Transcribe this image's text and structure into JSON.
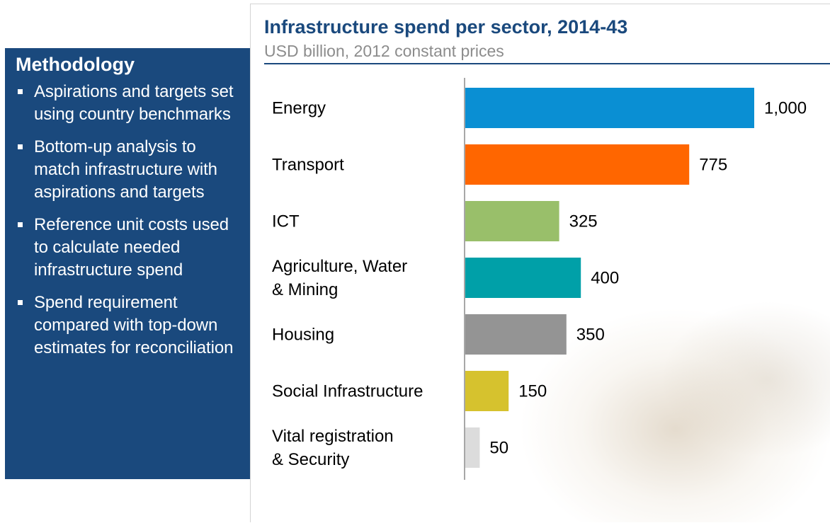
{
  "methodology": {
    "title": "Methodology",
    "bullets": [
      "Aspirations and targets set using country benchmarks",
      "Bottom-up analysis to match infrastructure with aspirations and targets",
      "Reference unit costs used to calculate needed infrastructure spend",
      "Spend requirement compared with top-down estimates for reconciliation"
    ]
  },
  "chart_data": {
    "type": "bar",
    "orientation": "horizontal",
    "title": "Infrastructure spend per sector, 2014-43",
    "subtitle": "USD billion, 2012 constant prices",
    "categories": [
      [
        "Energy"
      ],
      [
        "Transport"
      ],
      [
        "ICT"
      ],
      [
        "Agriculture, Water",
        "& Mining"
      ],
      [
        "Housing"
      ],
      [
        "Social Infrastructure"
      ],
      [
        "Vital registration",
        "& Security"
      ]
    ],
    "values": [
      1000,
      775,
      325,
      400,
      350,
      150,
      50
    ],
    "value_labels": [
      "1,000",
      "775",
      "325",
      "400",
      "350",
      "150",
      "50"
    ],
    "colors": [
      "#0a8fd3",
      "#ff6600",
      "#99bf6a",
      "#00a0a8",
      "#949494",
      "#d6c22e",
      "#dcdcdc"
    ],
    "xlim": [
      0,
      1000
    ],
    "grid": false,
    "legend": "none"
  }
}
